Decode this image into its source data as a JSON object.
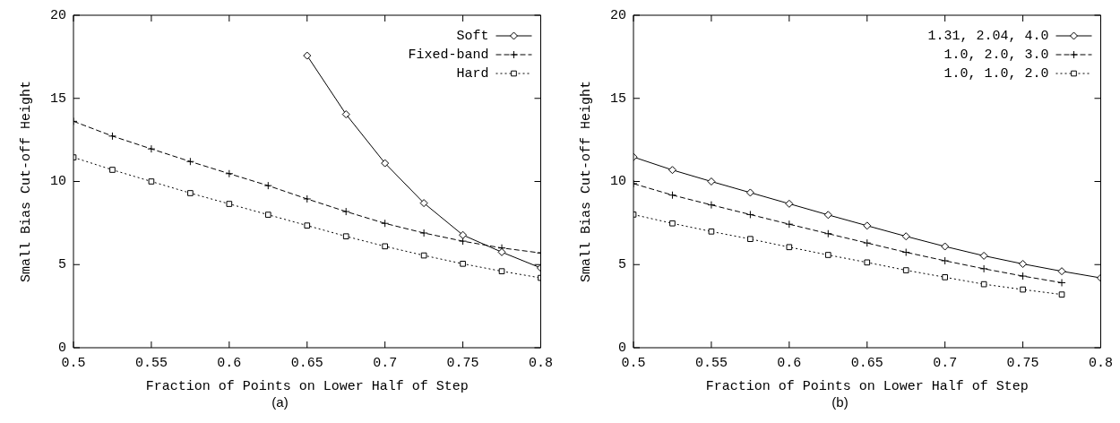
{
  "chart_data": [
    {
      "type": "line",
      "xlabel": "Fraction of Points on Lower Half of Step",
      "ylabel": "Small Bias Cut-off Height",
      "annotations": [
        "(a)"
      ],
      "x": [
        0.5,
        0.525,
        0.55,
        0.575,
        0.6,
        0.625,
        0.65,
        0.675,
        0.7,
        0.725,
        0.75,
        0.775,
        0.8
      ],
      "xlim": [
        0.5,
        0.8
      ],
      "xticks": [
        0.5,
        0.55,
        0.6,
        0.65,
        0.7,
        0.75,
        0.8
      ],
      "ylim": [
        0,
        20
      ],
      "yticks": [
        0,
        5,
        10,
        15,
        20
      ],
      "legend": "top right",
      "grid": false,
      "series": [
        {
          "name": "Soft",
          "color": "#000000",
          "marker": "diamond",
          "line_style": "solid",
          "values": [
            null,
            null,
            null,
            null,
            null,
            null,
            17.57,
            14.04,
            11.1,
            8.7,
            6.78,
            5.75,
            4.8
          ]
        },
        {
          "name": "Fixed-band",
          "color": "#000000",
          "marker": "cross",
          "line_style": "dashed",
          "values": [
            13.62,
            12.73,
            11.96,
            11.2,
            10.47,
            9.75,
            8.95,
            8.19,
            7.48,
            6.9,
            6.41,
            6.0,
            5.7
          ]
        },
        {
          "name": "Hard",
          "color": "#000000",
          "marker": "square",
          "line_style": "dotted",
          "values": [
            11.45,
            10.7,
            10.0,
            9.3,
            8.65,
            8.0,
            7.35,
            6.7,
            6.1,
            5.55,
            5.05,
            4.6,
            4.2
          ]
        }
      ]
    },
    {
      "type": "line",
      "xlabel": "Fraction of Points on Lower Half of Step",
      "ylabel": "Small Bias Cut-off Height",
      "annotations": [
        "(b)"
      ],
      "x": [
        0.5,
        0.525,
        0.55,
        0.575,
        0.6,
        0.625,
        0.65,
        0.675,
        0.7,
        0.725,
        0.75,
        0.775,
        0.8
      ],
      "xlim": [
        0.5,
        0.8
      ],
      "xticks": [
        0.5,
        0.55,
        0.6,
        0.65,
        0.7,
        0.75,
        0.8
      ],
      "ylim": [
        0,
        20
      ],
      "yticks": [
        0,
        5,
        10,
        15,
        20
      ],
      "legend": "top right",
      "grid": false,
      "series": [
        {
          "name": "1.31, 2.04, 4.0",
          "color": "#000000",
          "marker": "diamond",
          "line_style": "solid",
          "values": [
            11.47,
            10.69,
            10.0,
            9.33,
            8.66,
            7.99,
            7.34,
            6.7,
            6.09,
            5.53,
            5.04,
            4.6,
            4.2
          ]
        },
        {
          "name": "1.0, 2.0, 3.0",
          "color": "#000000",
          "marker": "cross",
          "line_style": "dashed",
          "values": [
            9.87,
            9.18,
            8.59,
            8.01,
            7.43,
            6.86,
            6.3,
            5.74,
            5.23,
            4.75,
            4.31,
            3.91,
            null
          ]
        },
        {
          "name": "1.0, 1.0, 2.0",
          "color": "#000000",
          "marker": "square",
          "line_style": "dotted",
          "values": [
            8.01,
            7.48,
            6.99,
            6.54,
            6.05,
            5.58,
            5.13,
            4.66,
            4.24,
            3.82,
            3.5,
            3.2,
            null
          ]
        }
      ]
    }
  ]
}
